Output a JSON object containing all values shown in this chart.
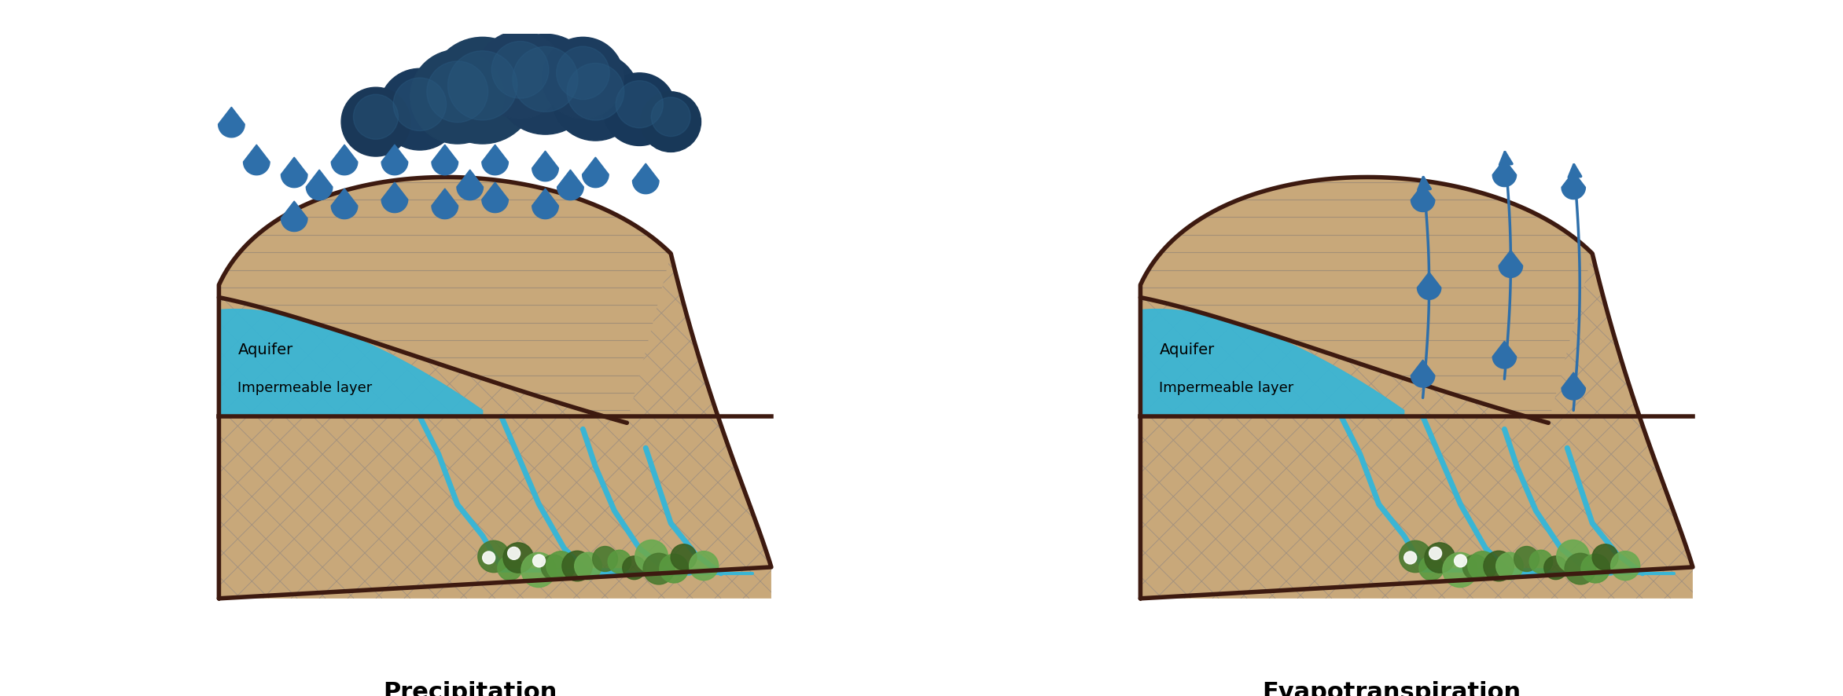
{
  "title_left": "Precipitation",
  "title_right": "Evapotranspiration",
  "title_fontsize": 22,
  "title_fontweight": "bold",
  "bg_color": "#ffffff",
  "terrain_color": "#c8a87a",
  "terrain_edge_color": "#3d1a10",
  "terrain_edge_width": 4.0,
  "hatch_color": "#a09080",
  "aquifer_color": "#3ab5d4",
  "rain_color": "#2e6faa",
  "arrow_color": "#2e6faa",
  "label_aquifer": "Aquifer",
  "label_impermeable": "Impermeable layer",
  "label_fontsize": 14,
  "sediment_line_color": "#9a8a78",
  "stream_color": "#3ab5d4",
  "veg_colors": [
    "#4a7a30",
    "#5a9a40",
    "#3a6020",
    "#6aaa50"
  ]
}
